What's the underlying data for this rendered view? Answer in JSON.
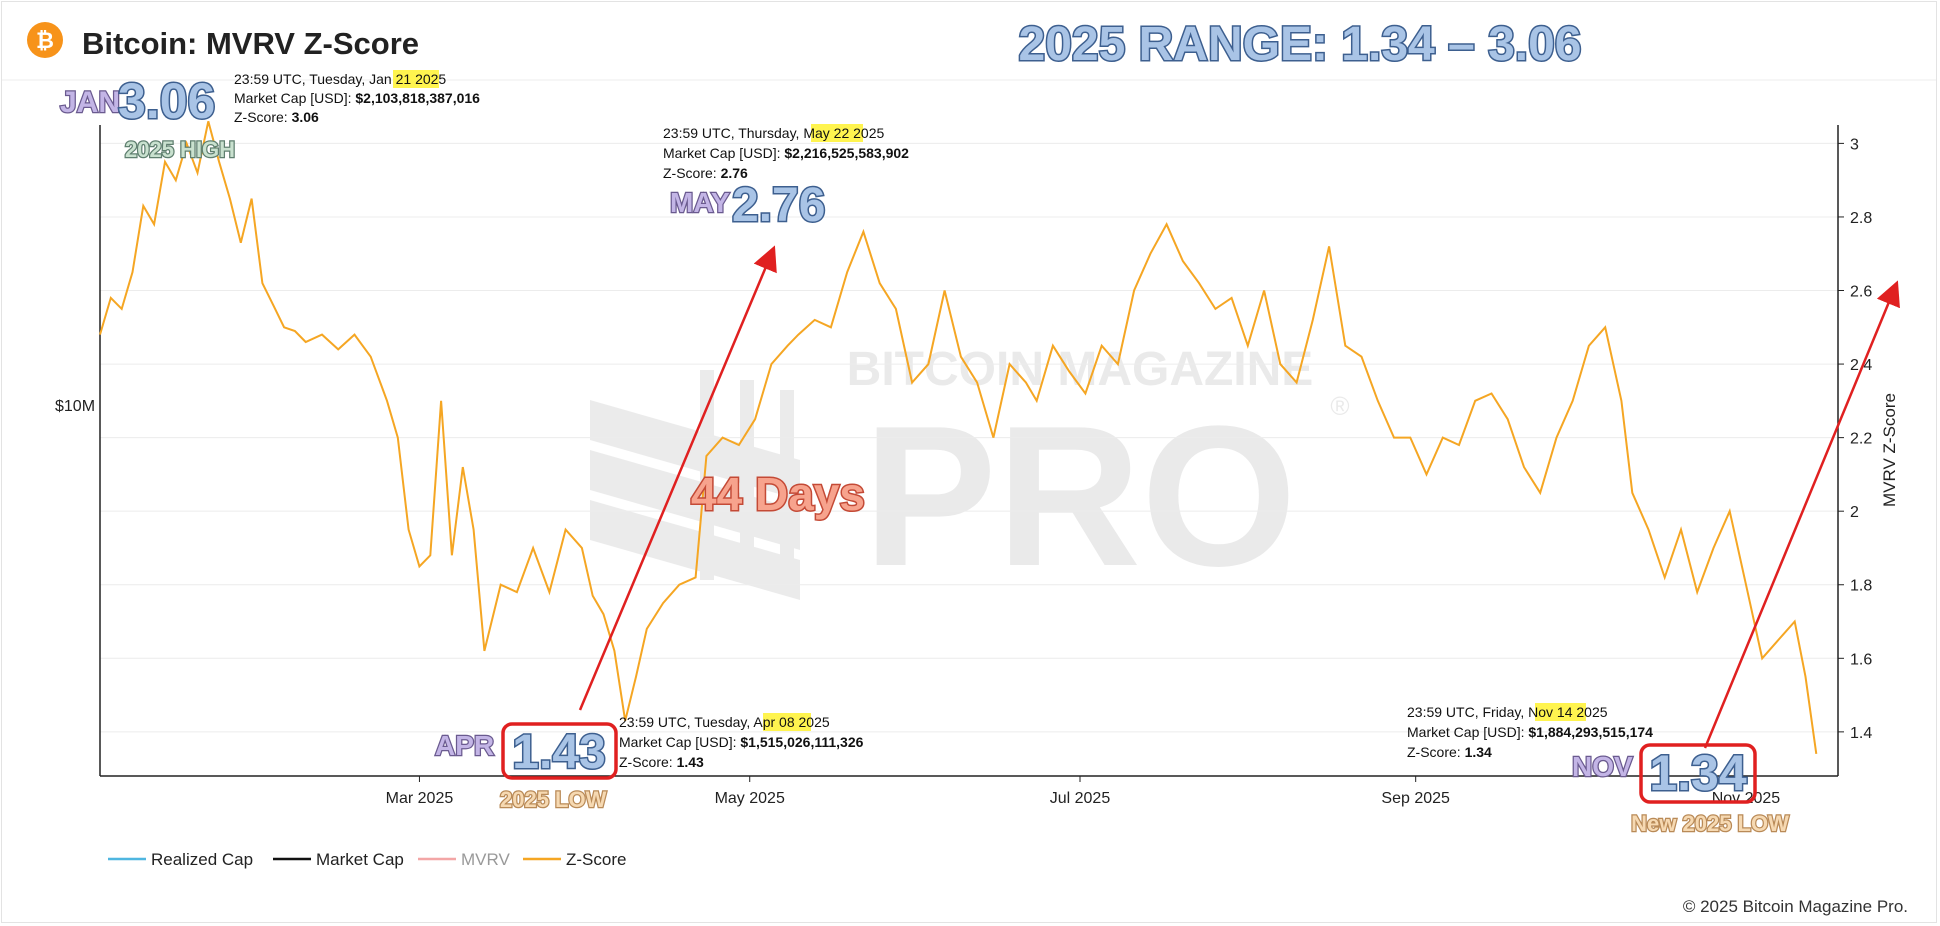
{
  "header": {
    "title": "Bitcoin: MVRV Z-Score",
    "range_headline": "2025 RANGE: 1.34 – 3.06",
    "brand_color": "#f7931a"
  },
  "watermark": {
    "line1": "BITCOIN MAGAZINE",
    "line2": "PRO",
    "registered": "®"
  },
  "left_axis": {
    "label": "$10M"
  },
  "right_axis": {
    "label": "MVRV Z-Score",
    "ticks": [
      "3",
      "2.8",
      "2.6",
      "2.4",
      "2.2",
      "2",
      "1.8",
      "1.6",
      "1.4"
    ]
  },
  "x_axis": {
    "ticks": [
      "Mar 2025",
      "May 2025",
      "Jul 2025",
      "Sep 2025",
      "Nov 2025"
    ]
  },
  "legend": [
    {
      "label": "Realized Cap",
      "color": "#4fb6e0"
    },
    {
      "label": "Market Cap",
      "color": "#111111"
    },
    {
      "label": "MVRV",
      "color": "#f3a6a6"
    },
    {
      "label": "Z-Score",
      "color": "#f5a623"
    }
  ],
  "annotations": {
    "jan": {
      "month": "JAN",
      "value": "3.06",
      "tag": "2025 HIGH",
      "line1": "23:59 UTC, Tuesday, ",
      "hl": "Jan 21",
      "line1b": " 2025",
      "cap_label": "Market Cap [USD]: ",
      "cap": "$2,103,818,387,016",
      "z_label": "Z-Score: ",
      "z": "3.06"
    },
    "may": {
      "month": "MAY",
      "value": "2.76",
      "line1": "23:59 UTC, Thursday, ",
      "hl": "May 22",
      "line1b": " 2025",
      "cap_label": "Market Cap [USD]: ",
      "cap": "$2,216,525,583,902",
      "z_label": "Z-Score: ",
      "z": "2.76"
    },
    "apr": {
      "month": "APR",
      "value": "1.43",
      "tag": "2025 LOW",
      "line1": "23:59 UTC, Tuesday, ",
      "hl": "Apr 08",
      "line1b": " 2025",
      "cap_label": "Market Cap [USD]: ",
      "cap": "$1,515,026,111,326",
      "z_label": "Z-Score: ",
      "z": "1.43"
    },
    "nov": {
      "month": "NOV",
      "value": "1.34",
      "tag": "New 2025 LOW",
      "line1": "23:59 UTC, Friday, ",
      "hl": "Nov 14",
      "line1b": " 2025",
      "cap_label": "Market Cap [USD]: ",
      "cap": "$1,884,293,515,174",
      "z_label": "Z-Score: ",
      "z": "1.34"
    },
    "days": "44 Days"
  },
  "footer": {
    "copyright": "© 2025 Bitcoin Magazine Pro."
  },
  "chart_data": {
    "type": "line",
    "title": "Bitcoin: MVRV Z-Score",
    "ylabel": "MVRV Z-Score",
    "ylim": [
      1.28,
      3.05
    ],
    "xlim": [
      "2025-01-01",
      "2025-11-18"
    ],
    "x_ticks": [
      "Mar 2025",
      "May 2025",
      "Jul 2025",
      "Sep 2025",
      "Nov 2025"
    ],
    "grid": true,
    "legend_position": "bottom-left",
    "series": [
      {
        "name": "Z-Score",
        "color": "#f5a623",
        "x": [
          "2025-01-01",
          "2025-01-03",
          "2025-01-05",
          "2025-01-07",
          "2025-01-09",
          "2025-01-11",
          "2025-01-13",
          "2025-01-15",
          "2025-01-17",
          "2025-01-19",
          "2025-01-21",
          "2025-01-23",
          "2025-01-25",
          "2025-01-27",
          "2025-01-29",
          "2025-01-31",
          "2025-02-02",
          "2025-02-04",
          "2025-02-06",
          "2025-02-08",
          "2025-02-11",
          "2025-02-14",
          "2025-02-17",
          "2025-02-20",
          "2025-02-23",
          "2025-02-25",
          "2025-02-27",
          "2025-03-01",
          "2025-03-03",
          "2025-03-05",
          "2025-03-07",
          "2025-03-09",
          "2025-03-11",
          "2025-03-13",
          "2025-03-16",
          "2025-03-19",
          "2025-03-22",
          "2025-03-25",
          "2025-03-28",
          "2025-03-31",
          "2025-04-02",
          "2025-04-04",
          "2025-04-06",
          "2025-04-08",
          "2025-04-10",
          "2025-04-12",
          "2025-04-15",
          "2025-04-18",
          "2025-04-21",
          "2025-04-23",
          "2025-04-26",
          "2025-04-29",
          "2025-05-02",
          "2025-05-05",
          "2025-05-08",
          "2025-05-10",
          "2025-05-13",
          "2025-05-16",
          "2025-05-19",
          "2025-05-22",
          "2025-05-25",
          "2025-05-28",
          "2025-05-31",
          "2025-06-03",
          "2025-06-06",
          "2025-06-09",
          "2025-06-12",
          "2025-06-15",
          "2025-06-18",
          "2025-06-21",
          "2025-06-23",
          "2025-06-26",
          "2025-06-29",
          "2025-07-02",
          "2025-07-05",
          "2025-07-08",
          "2025-07-11",
          "2025-07-14",
          "2025-07-17",
          "2025-07-20",
          "2025-07-23",
          "2025-07-26",
          "2025-07-29",
          "2025-08-01",
          "2025-08-04",
          "2025-08-07",
          "2025-08-10",
          "2025-08-13",
          "2025-08-16",
          "2025-08-19",
          "2025-08-22",
          "2025-08-25",
          "2025-08-28",
          "2025-08-31",
          "2025-09-03",
          "2025-09-06",
          "2025-09-09",
          "2025-09-12",
          "2025-09-15",
          "2025-09-18",
          "2025-09-21",
          "2025-09-24",
          "2025-09-27",
          "2025-09-30",
          "2025-10-03",
          "2025-10-06",
          "2025-10-09",
          "2025-10-11",
          "2025-10-14",
          "2025-10-17",
          "2025-10-20",
          "2025-10-23",
          "2025-10-26",
          "2025-10-29",
          "2025-11-01",
          "2025-11-04",
          "2025-11-07",
          "2025-11-10",
          "2025-11-12",
          "2025-11-14"
        ],
        "values": [
          2.48,
          2.58,
          2.55,
          2.65,
          2.83,
          2.78,
          2.95,
          2.9,
          3.0,
          2.92,
          3.06,
          2.95,
          2.85,
          2.73,
          2.85,
          2.62,
          2.56,
          2.5,
          2.49,
          2.46,
          2.48,
          2.44,
          2.48,
          2.42,
          2.3,
          2.2,
          1.95,
          1.85,
          1.88,
          2.3,
          1.88,
          2.12,
          1.95,
          1.62,
          1.8,
          1.78,
          1.9,
          1.78,
          1.95,
          1.9,
          1.77,
          1.72,
          1.62,
          1.43,
          1.55,
          1.68,
          1.75,
          1.8,
          1.82,
          2.15,
          2.2,
          2.18,
          2.25,
          2.4,
          2.45,
          2.48,
          2.52,
          2.5,
          2.65,
          2.76,
          2.62,
          2.55,
          2.35,
          2.4,
          2.6,
          2.42,
          2.35,
          2.2,
          2.4,
          2.35,
          2.3,
          2.45,
          2.38,
          2.32,
          2.45,
          2.4,
          2.6,
          2.7,
          2.78,
          2.68,
          2.62,
          2.55,
          2.58,
          2.45,
          2.6,
          2.4,
          2.35,
          2.52,
          2.72,
          2.45,
          2.42,
          2.3,
          2.2,
          2.2,
          2.1,
          2.2,
          2.18,
          2.3,
          2.32,
          2.25,
          2.12,
          2.05,
          2.2,
          2.3,
          2.45,
          2.5,
          2.3,
          2.05,
          1.95,
          1.82,
          1.95,
          1.78,
          1.9,
          2.0,
          1.8,
          1.6,
          1.65,
          1.7,
          1.55,
          1.34
        ]
      }
    ]
  }
}
